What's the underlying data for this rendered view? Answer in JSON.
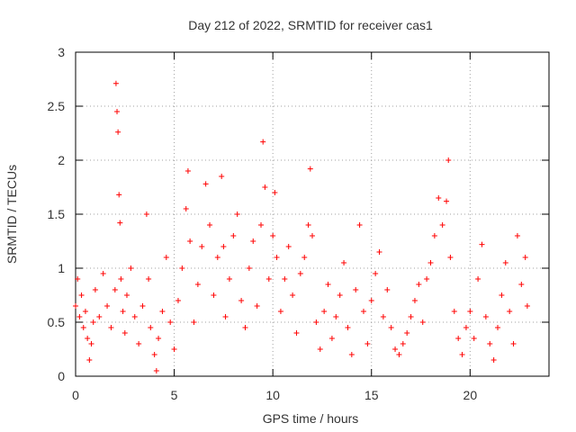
{
  "chart_data": {
    "type": "scatter",
    "title": "Day 212 of 2022, SRMTID for receiver cas1",
    "xlabel": "GPS time / hours",
    "ylabel": "SRMTID / TECUs",
    "xlim": [
      0,
      24
    ],
    "ylim": [
      0,
      3
    ],
    "xticks": [
      0,
      5,
      10,
      15,
      20
    ],
    "yticks": [
      0,
      0.5,
      1,
      1.5,
      2,
      2.5,
      3
    ],
    "xtick_labels": [
      "0",
      "5",
      "10",
      "15",
      "20"
    ],
    "ytick_labels": [
      "0",
      "0.5",
      "1",
      "1.5",
      "2",
      "2.5",
      "3"
    ],
    "grid": true,
    "marker": "+",
    "marker_color": "#ff0000",
    "series": [
      {
        "name": "cas1",
        "points": [
          [
            0.0,
            0.65
          ],
          [
            0.1,
            0.9
          ],
          [
            0.2,
            0.55
          ],
          [
            0.3,
            0.75
          ],
          [
            0.4,
            0.45
          ],
          [
            0.5,
            0.6
          ],
          [
            0.6,
            0.35
          ],
          [
            0.7,
            0.15
          ],
          [
            0.8,
            0.3
          ],
          [
            0.9,
            0.5
          ],
          [
            1.0,
            0.8
          ],
          [
            1.2,
            0.55
          ],
          [
            1.4,
            0.95
          ],
          [
            1.6,
            0.65
          ],
          [
            1.8,
            0.45
          ],
          [
            2.0,
            0.8
          ],
          [
            2.05,
            2.71
          ],
          [
            2.1,
            2.45
          ],
          [
            2.15,
            2.26
          ],
          [
            2.2,
            1.68
          ],
          [
            2.25,
            1.42
          ],
          [
            2.3,
            0.9
          ],
          [
            2.4,
            0.6
          ],
          [
            2.5,
            0.4
          ],
          [
            2.6,
            0.75
          ],
          [
            2.8,
            1.0
          ],
          [
            3.0,
            0.55
          ],
          [
            3.2,
            0.3
          ],
          [
            3.4,
            0.65
          ],
          [
            3.6,
            1.5
          ],
          [
            3.7,
            0.9
          ],
          [
            3.8,
            0.45
          ],
          [
            4.0,
            0.2
          ],
          [
            4.1,
            0.05
          ],
          [
            4.2,
            0.35
          ],
          [
            4.4,
            0.6
          ],
          [
            4.6,
            1.1
          ],
          [
            4.8,
            0.5
          ],
          [
            5.0,
            0.25
          ],
          [
            5.2,
            0.7
          ],
          [
            5.4,
            1.0
          ],
          [
            5.6,
            1.55
          ],
          [
            5.7,
            1.9
          ],
          [
            5.8,
            1.25
          ],
          [
            6.0,
            0.5
          ],
          [
            6.2,
            0.85
          ],
          [
            6.4,
            1.2
          ],
          [
            6.6,
            1.78
          ],
          [
            6.8,
            1.4
          ],
          [
            7.0,
            0.75
          ],
          [
            7.2,
            1.1
          ],
          [
            7.4,
            1.85
          ],
          [
            7.5,
            1.2
          ],
          [
            7.6,
            0.55
          ],
          [
            7.8,
            0.9
          ],
          [
            8.0,
            1.3
          ],
          [
            8.2,
            1.5
          ],
          [
            8.4,
            0.7
          ],
          [
            8.6,
            0.45
          ],
          [
            8.8,
            1.0
          ],
          [
            9.0,
            1.25
          ],
          [
            9.2,
            0.65
          ],
          [
            9.4,
            1.4
          ],
          [
            9.5,
            2.17
          ],
          [
            9.6,
            1.75
          ],
          [
            9.8,
            0.9
          ],
          [
            10.0,
            1.3
          ],
          [
            10.1,
            1.7
          ],
          [
            10.2,
            1.1
          ],
          [
            10.4,
            0.6
          ],
          [
            10.6,
            0.9
          ],
          [
            10.8,
            1.2
          ],
          [
            11.0,
            0.75
          ],
          [
            11.2,
            0.4
          ],
          [
            11.4,
            0.95
          ],
          [
            11.6,
            1.1
          ],
          [
            11.8,
            1.4
          ],
          [
            11.9,
            1.92
          ],
          [
            12.0,
            1.3
          ],
          [
            12.2,
            0.5
          ],
          [
            12.4,
            0.25
          ],
          [
            12.6,
            0.6
          ],
          [
            12.8,
            0.85
          ],
          [
            13.0,
            0.35
          ],
          [
            13.2,
            0.55
          ],
          [
            13.4,
            0.75
          ],
          [
            13.6,
            1.05
          ],
          [
            13.8,
            0.45
          ],
          [
            14.0,
            0.2
          ],
          [
            14.2,
            0.8
          ],
          [
            14.4,
            1.4
          ],
          [
            14.6,
            0.6
          ],
          [
            14.8,
            0.3
          ],
          [
            15.0,
            0.7
          ],
          [
            15.2,
            0.95
          ],
          [
            15.4,
            1.15
          ],
          [
            15.6,
            0.55
          ],
          [
            15.8,
            0.8
          ],
          [
            16.0,
            0.45
          ],
          [
            16.2,
            0.25
          ],
          [
            16.4,
            0.2
          ],
          [
            16.6,
            0.3
          ],
          [
            16.8,
            0.4
          ],
          [
            17.0,
            0.55
          ],
          [
            17.2,
            0.7
          ],
          [
            17.4,
            0.85
          ],
          [
            17.6,
            0.5
          ],
          [
            17.8,
            0.9
          ],
          [
            18.0,
            1.05
          ],
          [
            18.2,
            1.3
          ],
          [
            18.4,
            1.65
          ],
          [
            18.6,
            1.4
          ],
          [
            18.8,
            1.62
          ],
          [
            18.9,
            2.0
          ],
          [
            19.0,
            1.1
          ],
          [
            19.2,
            0.6
          ],
          [
            19.4,
            0.35
          ],
          [
            19.6,
            0.2
          ],
          [
            19.8,
            0.45
          ],
          [
            20.0,
            0.6
          ],
          [
            20.2,
            0.35
          ],
          [
            20.4,
            0.9
          ],
          [
            20.6,
            1.22
          ],
          [
            20.8,
            0.55
          ],
          [
            21.0,
            0.3
          ],
          [
            21.2,
            0.15
          ],
          [
            21.4,
            0.45
          ],
          [
            21.6,
            0.75
          ],
          [
            21.8,
            1.05
          ],
          [
            22.0,
            0.6
          ],
          [
            22.2,
            0.3
          ],
          [
            22.4,
            1.3
          ],
          [
            22.6,
            0.85
          ],
          [
            22.8,
            1.1
          ],
          [
            22.9,
            0.65
          ]
        ]
      }
    ]
  }
}
